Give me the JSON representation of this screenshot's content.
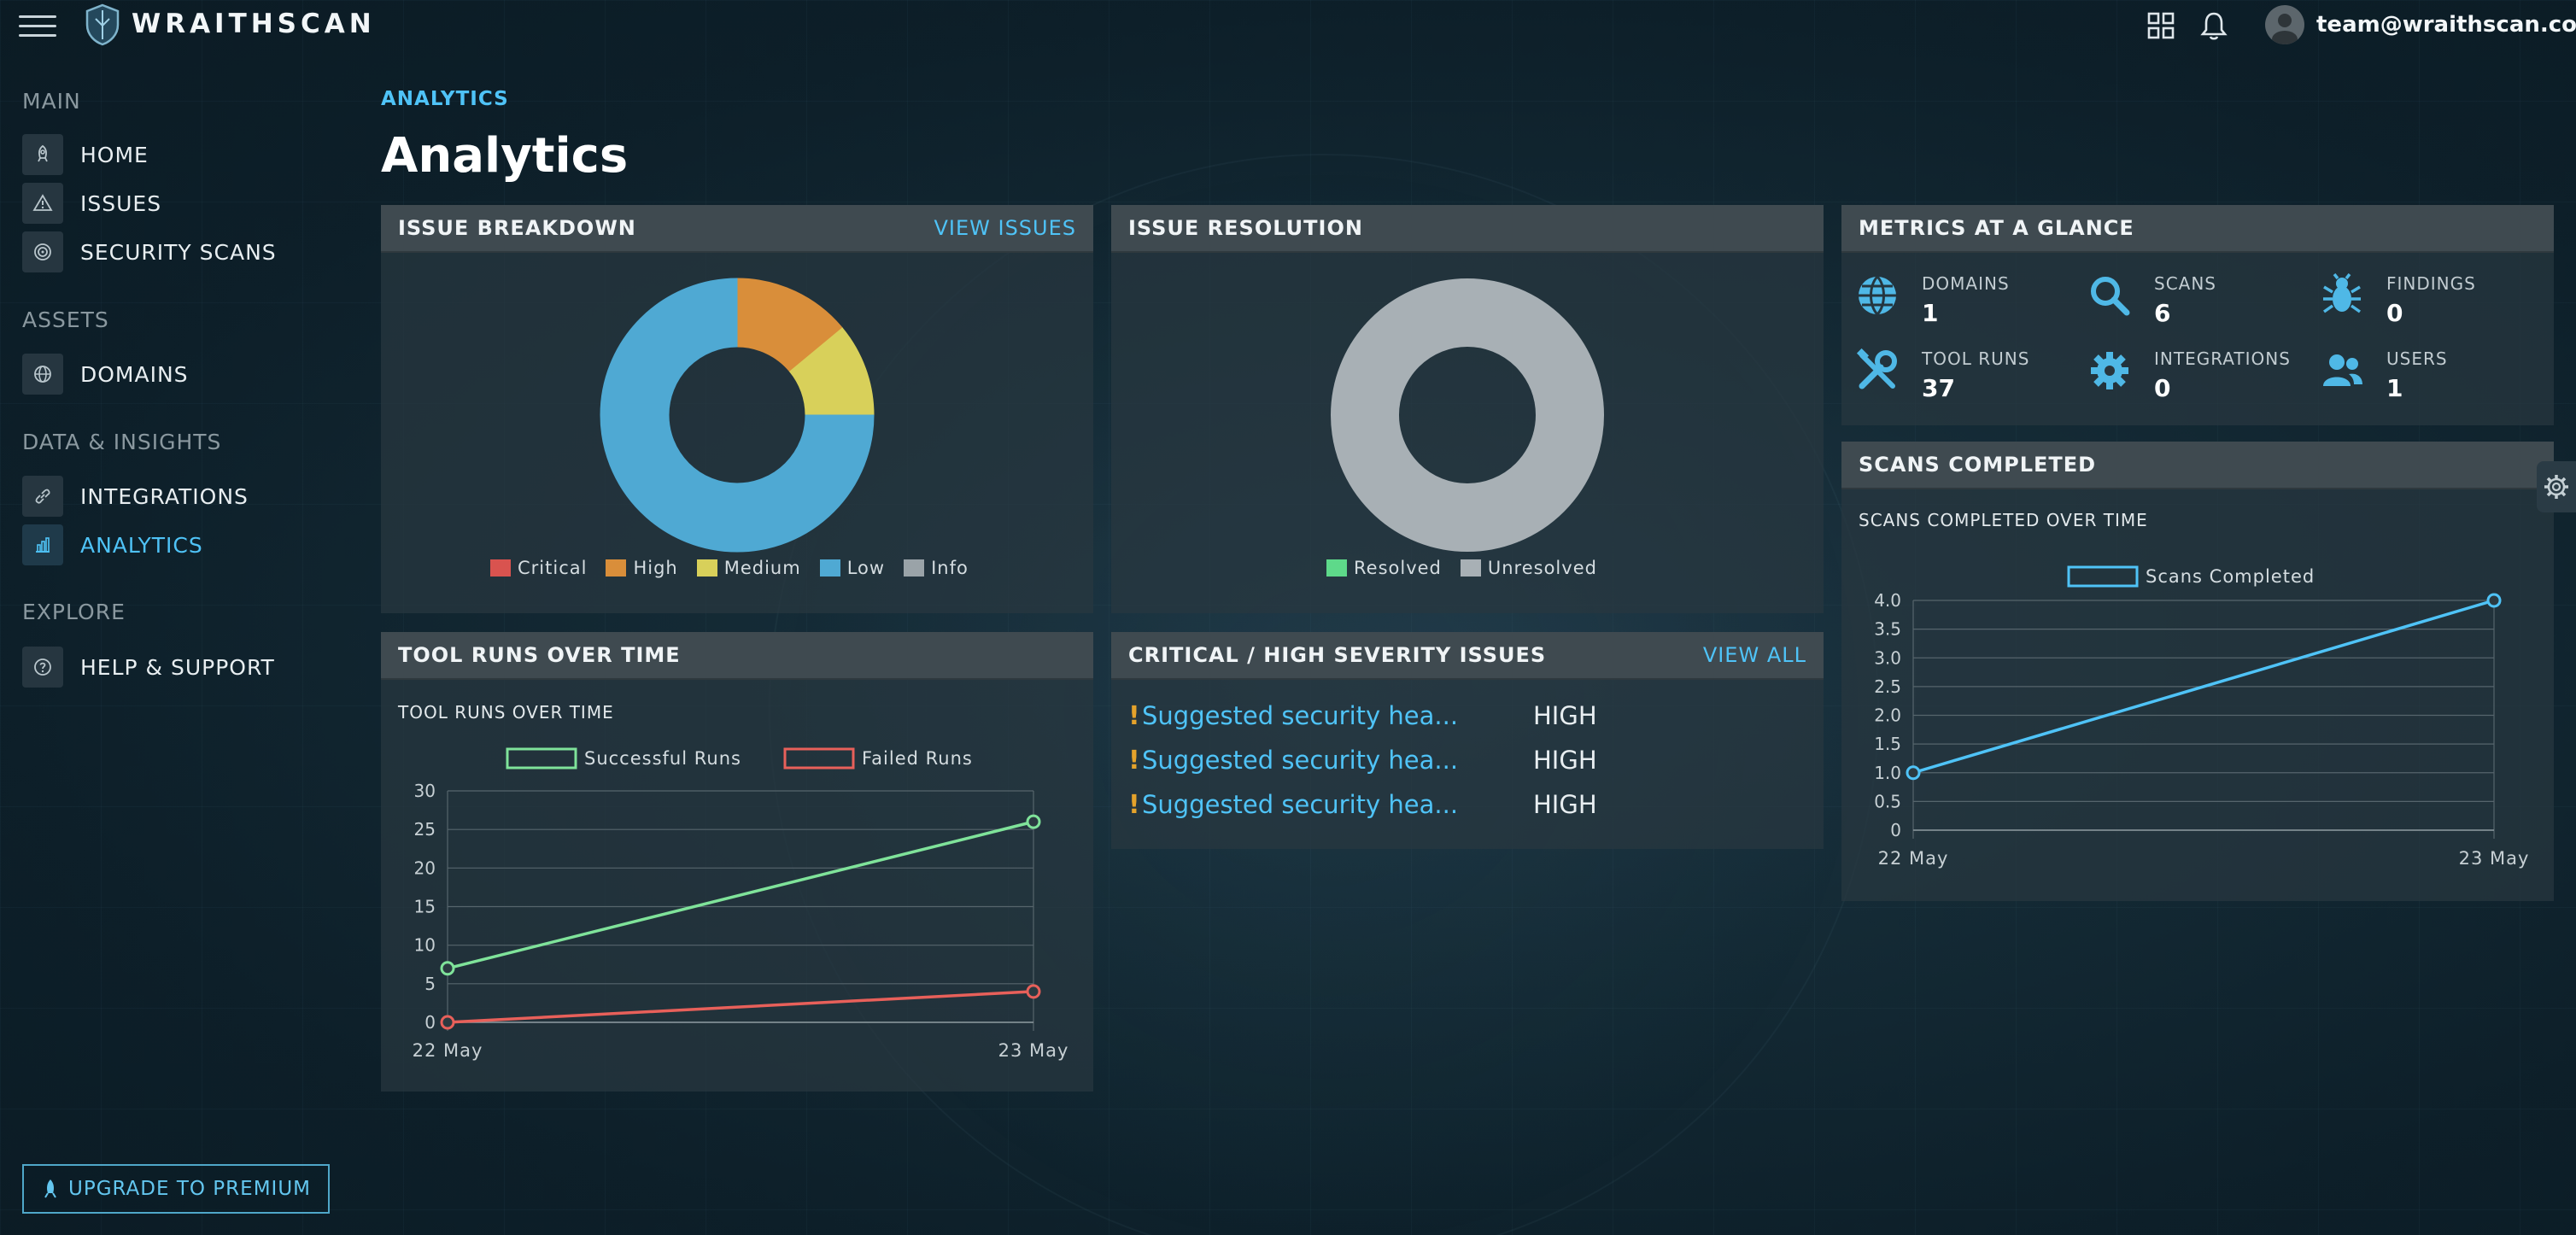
{
  "app": {
    "brand": "WRAITHSCAN",
    "user_email": "team@wraithscan.com",
    "icons": [
      "menu-icon",
      "shield-logo-icon",
      "grid-icon",
      "bell-icon",
      "user-avatar-icon"
    ]
  },
  "sidebar": {
    "sections": [
      {
        "title": "MAIN",
        "items": [
          {
            "label": "HOME",
            "icon": "rocket-icon"
          },
          {
            "label": "ISSUES",
            "icon": "warning-icon"
          },
          {
            "label": "SECURITY SCANS",
            "icon": "target-icon"
          }
        ]
      },
      {
        "title": "ASSETS",
        "items": [
          {
            "label": "DOMAINS",
            "icon": "globe-icon"
          }
        ]
      },
      {
        "title": "DATA & INSIGHTS",
        "items": [
          {
            "label": "INTEGRATIONS",
            "icon": "link-icon"
          },
          {
            "label": "ANALYTICS",
            "icon": "bar-chart-icon",
            "active": true
          }
        ]
      },
      {
        "title": "EXPLORE",
        "items": [
          {
            "label": "HELP & SUPPORT",
            "icon": "help-icon"
          }
        ]
      }
    ],
    "upgrade_label": "UPGRADE TO PREMIUM"
  },
  "main": {
    "breadcrumb": "ANALYTICS",
    "title": "Analytics"
  },
  "issue_breakdown": {
    "title": "ISSUE BREAKDOWN",
    "link": "VIEW ISSUES",
    "legend": [
      "Critical",
      "High",
      "Medium",
      "Low",
      "Info"
    ]
  },
  "issue_resolution": {
    "title": "ISSUE RESOLUTION",
    "legend": [
      "Resolved",
      "Unresolved"
    ]
  },
  "metrics": {
    "title": "METRICS AT A GLANCE",
    "items": [
      {
        "label": "DOMAINS",
        "value": "1",
        "icon": "globe-icon"
      },
      {
        "label": "SCANS",
        "value": "6",
        "icon": "search-icon"
      },
      {
        "label": "FINDINGS",
        "value": "0",
        "icon": "bug-icon"
      },
      {
        "label": "TOOL RUNS",
        "value": "37",
        "icon": "tools-icon"
      },
      {
        "label": "INTEGRATIONS",
        "value": "0",
        "icon": "gear-icon"
      },
      {
        "label": "USERS",
        "value": "1",
        "icon": "users-icon"
      }
    ]
  },
  "tool_runs": {
    "title": "TOOL RUNS OVER TIME",
    "subtitle": "TOOL RUNS OVER TIME"
  },
  "critical_issues": {
    "title": "CRITICAL / HIGH SEVERITY ISSUES",
    "link": "VIEW ALL",
    "rows": [
      {
        "marker": "!",
        "title": "Suggested security hea...",
        "severity": "HIGH"
      },
      {
        "marker": "!",
        "title": "Suggested security hea...",
        "severity": "HIGH"
      },
      {
        "marker": "!",
        "title": "Suggested security hea...",
        "severity": "HIGH"
      }
    ]
  },
  "scans_completed": {
    "title": "SCANS COMPLETED",
    "subtitle": "SCANS COMPLETED OVER TIME"
  },
  "colors": {
    "accent": "#4fc3f7",
    "critical": "#d9534f",
    "high": "#d98e3a",
    "medium": "#d8d05a",
    "low": "#4fa9d3",
    "info": "#9aa3a8",
    "resolved": "#5ed98a",
    "unresolved": "#a8b0b5",
    "successful": "#7fe39a",
    "failed": "#e8605a"
  },
  "chart_data": [
    {
      "type": "pie",
      "name": "issue_breakdown",
      "categories": [
        "Critical",
        "High",
        "Medium",
        "Low",
        "Info"
      ],
      "values": [
        0,
        14,
        11,
        75,
        0
      ],
      "donut": true,
      "legend": "bottom"
    },
    {
      "type": "pie",
      "name": "issue_resolution",
      "categories": [
        "Resolved",
        "Unresolved"
      ],
      "values": [
        0,
        100
      ],
      "donut": true,
      "legend": "bottom"
    },
    {
      "type": "line",
      "name": "tool_runs",
      "title": "TOOL RUNS OVER TIME",
      "x": [
        "22 May",
        "23 May"
      ],
      "series": [
        {
          "name": "Successful Runs",
          "values": [
            7,
            26
          ]
        },
        {
          "name": "Failed Runs",
          "values": [
            0,
            4
          ]
        }
      ],
      "ylim": [
        0,
        30
      ],
      "yticks": [
        0,
        5,
        10,
        15,
        20,
        25,
        30
      ],
      "grid": true,
      "legend": "top"
    },
    {
      "type": "line",
      "name": "scans_completed",
      "title": "SCANS COMPLETED OVER TIME",
      "x": [
        "22 May",
        "23 May"
      ],
      "series": [
        {
          "name": "Scans Completed",
          "values": [
            1.0,
            4.0
          ]
        }
      ],
      "ylim": [
        0,
        4
      ],
      "yticks": [
        "0",
        "0.5",
        "1.0",
        "1.5",
        "2.0",
        "2.5",
        "3.0",
        "3.5",
        "4.0"
      ],
      "grid": true,
      "legend": "top"
    }
  ]
}
